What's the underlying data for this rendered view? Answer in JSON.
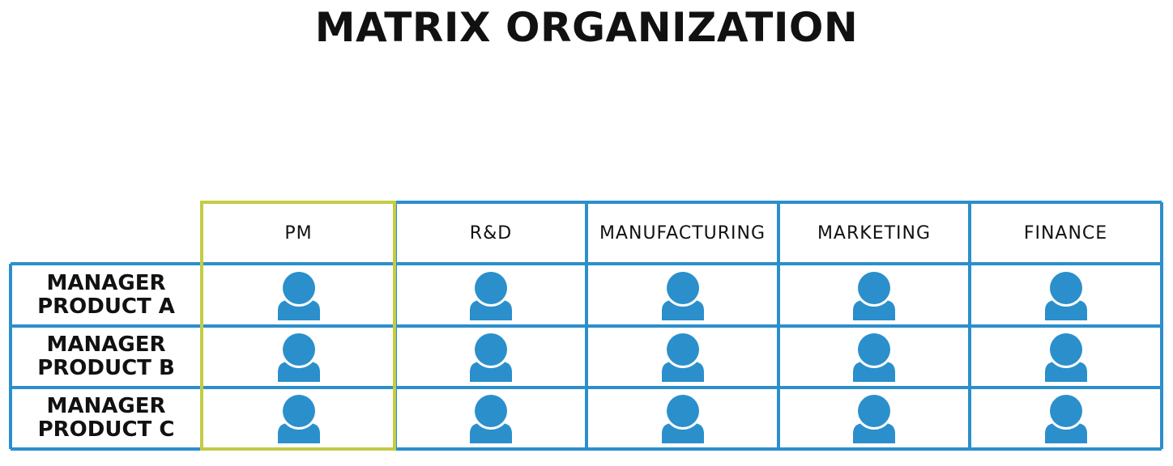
{
  "title": "MATRIX ORGANIZATION",
  "columns": [
    {
      "label": "PM"
    },
    {
      "label": "R&D"
    },
    {
      "label": "MANUFACTURING"
    },
    {
      "label": "MARKETING"
    },
    {
      "label": "FINANCE"
    }
  ],
  "rows": [
    {
      "line1": "MANAGER",
      "line2": "PRODUCT A"
    },
    {
      "line1": "MANAGER",
      "line2": "PRODUCT B"
    },
    {
      "line1": "MANAGER",
      "line2": "PRODUCT C"
    }
  ],
  "icon": "person-icon",
  "colors": {
    "grid": "#2b8fcc",
    "highlight": "#c3cc45",
    "icon": "#2b8fcc"
  }
}
